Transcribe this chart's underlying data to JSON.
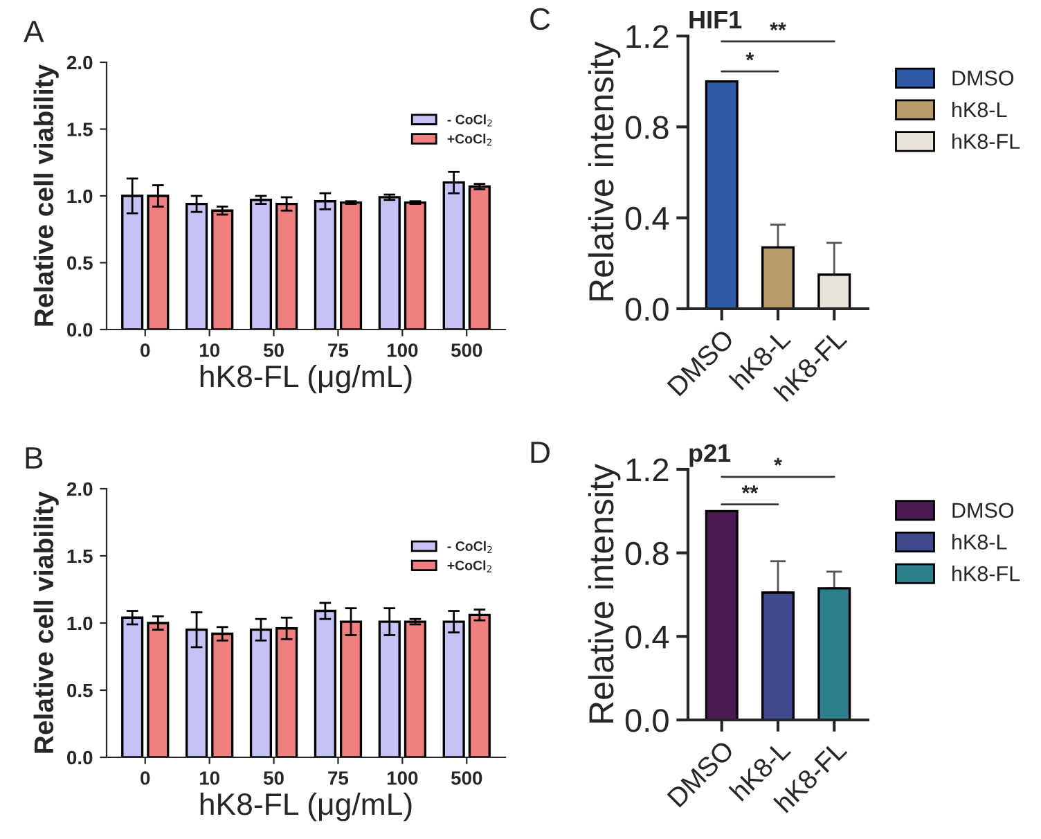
{
  "chart_data": [
    {
      "type": "bar",
      "annotations": [
        "A"
      ],
      "xlabel": "hK8-FL (μg/mL)",
      "ylabel": "Relative cell viability",
      "categories": [
        "0",
        "10",
        "50",
        "75",
        "100",
        "500"
      ],
      "series": [
        {
          "name": "- CoCl$_{2}$",
          "color": "#c5c3f5",
          "values": [
            1.0,
            0.94,
            0.97,
            0.96,
            0.99,
            1.1
          ],
          "errors": [
            0.13,
            0.06,
            0.03,
            0.06,
            0.02,
            0.08
          ]
        },
        {
          "name": "+CoCl$_{2}$",
          "color": "#f08080",
          "values": [
            1.0,
            0.89,
            0.94,
            0.95,
            0.95,
            1.07
          ],
          "errors": [
            0.08,
            0.03,
            0.05,
            0.01,
            0.01,
            0.02
          ]
        }
      ],
      "ylim": [
        0,
        2.0
      ],
      "yticks": [
        {
          "value": 0,
          "label": "0.0"
        },
        {
          "value": 0.5,
          "label": "0.5"
        },
        {
          "value": 1.0,
          "label": "1.0"
        },
        {
          "value": 1.5,
          "label": "1.5"
        },
        {
          "value": 2.0,
          "label": "2.0"
        }
      ],
      "legend": "top right"
    },
    {
      "type": "bar",
      "stacked": true,
      "title": "HIF1",
      "annotations": [
        "C",
        "*",
        "**"
      ],
      "ylabel": "Relative intensity",
      "categories": [
        "DMSO",
        "hK8-L",
        "hK8-FL"
      ],
      "series": [
        {
          "name": "DMSO",
          "color": "#2e5aa8",
          "values": [
            1.0,
            null,
            null
          ]
        },
        {
          "name": "hK8-L",
          "color": "#b89b6b",
          "values": [
            null,
            0.27,
            null
          ],
          "errors": [
            null,
            [
              0.27,
              0.37
            ],
            null
          ]
        },
        {
          "name": "hK8-FL",
          "color": "#e8e4dc",
          "values": [
            null,
            null,
            0.15
          ],
          "errors": [
            null,
            null,
            [
              0.15,
              0.29
            ]
          ]
        }
      ],
      "ylim": [
        0,
        1.2
      ],
      "yticks": [
        {
          "value": 0,
          "label": "0.0"
        },
        {
          "value": 0.4,
          "label": "0.4"
        },
        {
          "value": 0.8,
          "label": "0.8"
        },
        {
          "value": 1.2,
          "label": "1.2"
        }
      ],
      "legend": "right"
    },
    {
      "type": "bar",
      "annotations": [
        "B"
      ],
      "xlabel": "hK8-FL (μg/mL)",
      "ylabel": "Relative cell viability",
      "categories": [
        "0",
        "10",
        "50",
        "75",
        "100",
        "500"
      ],
      "series": [
        {
          "name": "- CoCl$_{2}$",
          "color": "#c5c3f5",
          "values": [
            1.04,
            0.95,
            0.95,
            1.09,
            1.01,
            1.01
          ],
          "errors": [
            0.05,
            0.13,
            0.08,
            0.06,
            0.1,
            0.08
          ]
        },
        {
          "name": "+CoCl$_{2}$",
          "color": "#f08080",
          "values": [
            1.0,
            0.92,
            0.96,
            1.01,
            1.01,
            1.06
          ],
          "errors": [
            0.05,
            0.05,
            0.08,
            0.1,
            0.02,
            0.04
          ]
        }
      ],
      "ylim": [
        0,
        2.0
      ],
      "yticks": [
        {
          "value": 0,
          "label": "0.0"
        },
        {
          "value": 0.5,
          "label": "0.5"
        },
        {
          "value": 1.0,
          "label": "1.0"
        },
        {
          "value": 1.5,
          "label": "1.5"
        },
        {
          "value": 2.0,
          "label": "2.0"
        }
      ],
      "legend": "top right"
    },
    {
      "type": "bar",
      "stacked": true,
      "title": "p21",
      "annotations": [
        "D",
        "**",
        "*"
      ],
      "ylabel": "Relative intensity",
      "categories": [
        "DMSO",
        "hK8-L",
        "hK8-FL"
      ],
      "series": [
        {
          "name": "DMSO",
          "color": "#4a1a55",
          "values": [
            1.0,
            null,
            null
          ]
        },
        {
          "name": "hK8-L",
          "color": "#3f4a8c",
          "values": [
            null,
            0.61,
            null
          ],
          "errors": [
            null,
            [
              0.61,
              0.76
            ],
            null
          ]
        },
        {
          "name": "hK8-FL",
          "color": "#2e7f8e",
          "values": [
            null,
            null,
            0.63
          ],
          "errors": [
            null,
            null,
            [
              0.63,
              0.71
            ]
          ]
        }
      ],
      "ylim": [
        0,
        1.2
      ],
      "yticks": [
        {
          "value": 0,
          "label": "0.0"
        },
        {
          "value": 0.4,
          "label": "0.4"
        },
        {
          "value": 0.8,
          "label": "0.8"
        },
        {
          "value": 1.2,
          "label": "1.2"
        }
      ],
      "legend": "right"
    }
  ]
}
